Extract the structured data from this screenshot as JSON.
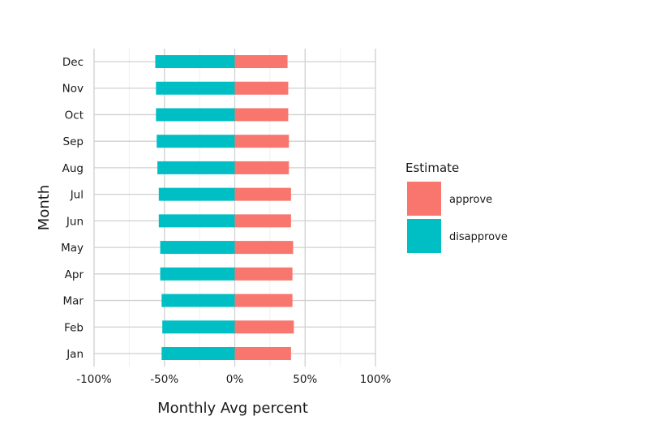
{
  "chart_data": {
    "type": "bar",
    "orientation": "horizontal",
    "stacked": "diverging",
    "title": "",
    "xlabel": "Monthly Avg percent",
    "ylabel": "Month",
    "categories": [
      "Jan",
      "Feb",
      "Mar",
      "Apr",
      "May",
      "Jun",
      "Jul",
      "Aug",
      "Sep",
      "Oct",
      "Nov",
      "Dec"
    ],
    "series": [
      {
        "name": "approve",
        "color": "#F8766D",
        "values": [
          40,
          42,
          41,
          41,
          41.5,
          40,
          40,
          38.5,
          38.5,
          38,
          38,
          37.5
        ]
      },
      {
        "name": "disapprove",
        "color": "#00BFC4",
        "values": [
          -52,
          -51.5,
          -52,
          -53,
          -53,
          -54,
          -54,
          -55,
          -55.5,
          -56,
          -56,
          -56.5
        ]
      }
    ],
    "xlim": [
      -100,
      100
    ],
    "xticks": [
      -100,
      -50,
      0,
      50,
      100
    ],
    "xtick_labels": [
      "-100%",
      "-50%",
      "0%",
      "50%",
      "100%"
    ],
    "grid": true,
    "legend": {
      "title": "Estimate",
      "position": "right",
      "entries": [
        "approve",
        "disapprove"
      ]
    }
  }
}
